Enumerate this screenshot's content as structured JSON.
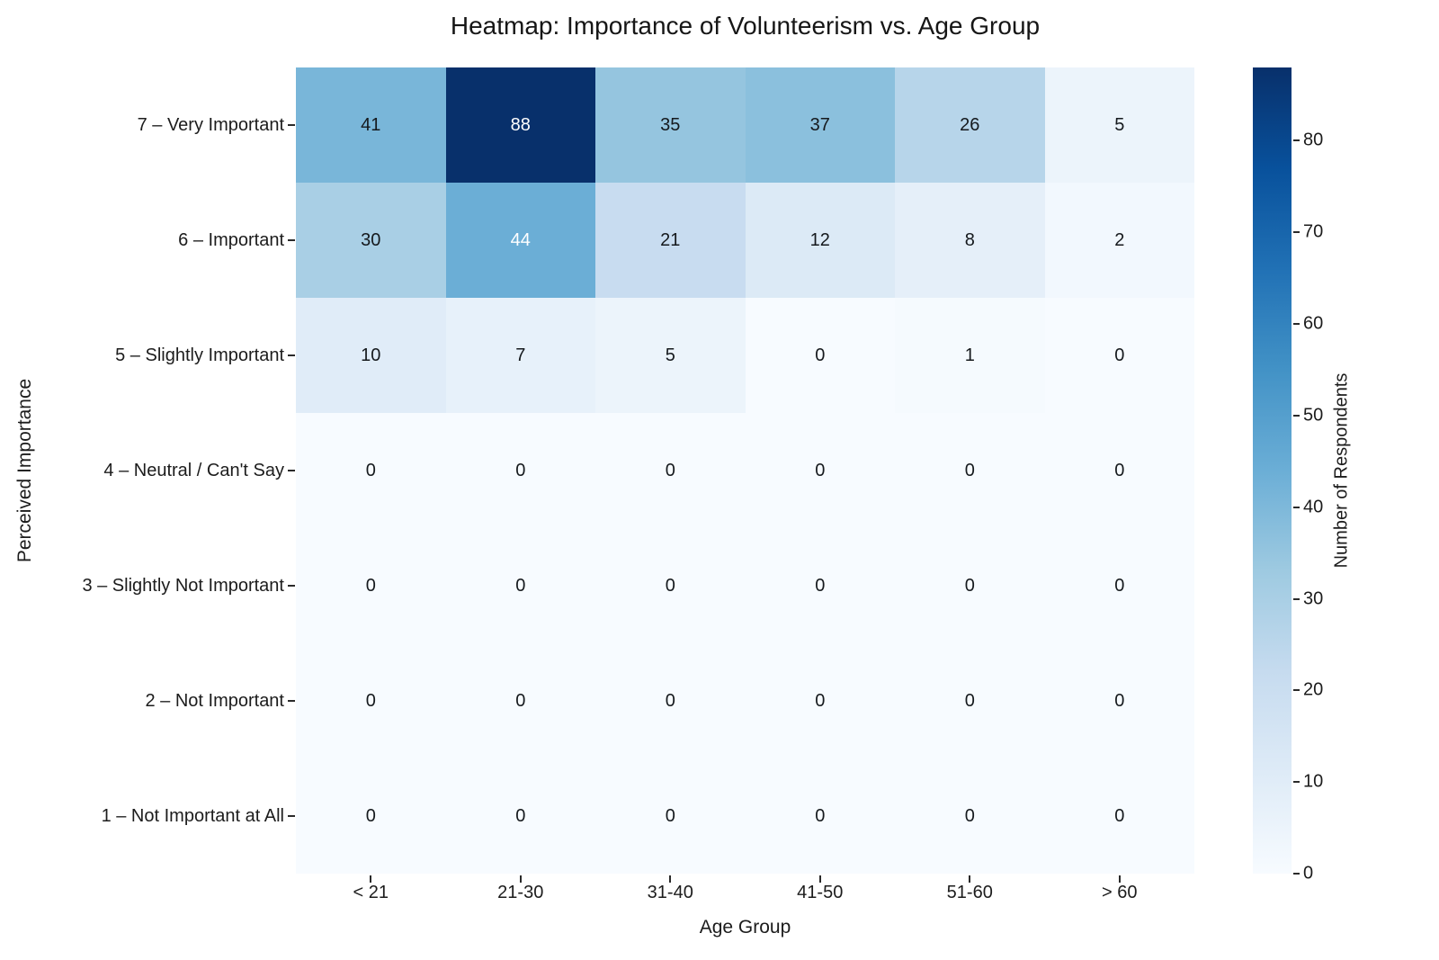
{
  "chart_data": {
    "type": "heatmap",
    "title": "Heatmap: Importance of Volunteerism vs. Age Group",
    "xlabel": "Age Group",
    "ylabel": "Perceived Importance",
    "x_categories": [
      "< 21",
      "21-30",
      "31-40",
      "41-50",
      "51-60",
      "> 60"
    ],
    "y_categories": [
      "7 – Very Important",
      "6 – Important",
      "5 – Slightly Important",
      "4 – Neutral / Can't Say",
      "3 – Slightly Not Important",
      "2 – Not Important",
      "1 – Not Important at All"
    ],
    "values": [
      [
        41,
        88,
        35,
        37,
        26,
        5
      ],
      [
        30,
        44,
        21,
        12,
        8,
        2
      ],
      [
        10,
        7,
        5,
        0,
        1,
        0
      ],
      [
        0,
        0,
        0,
        0,
        0,
        0
      ],
      [
        0,
        0,
        0,
        0,
        0,
        0
      ],
      [
        0,
        0,
        0,
        0,
        0,
        0
      ],
      [
        0,
        0,
        0,
        0,
        0,
        0
      ]
    ],
    "vmin": 0,
    "vmax": 88,
    "grid": false,
    "legend_position": "right",
    "colormap": "Blues",
    "colormap_stops": [
      "#f7fbff",
      "#deebf7",
      "#c6dbef",
      "#9ecae1",
      "#6baed6",
      "#4292c6",
      "#2171b5",
      "#08519c",
      "#08306b"
    ],
    "annotation_color_dark": "#15191d",
    "annotation_color_light": "#ffffff",
    "colorbar": {
      "label": "Number of Respondents",
      "ticks": [
        0,
        10,
        20,
        30,
        40,
        50,
        60,
        70,
        80
      ]
    }
  }
}
